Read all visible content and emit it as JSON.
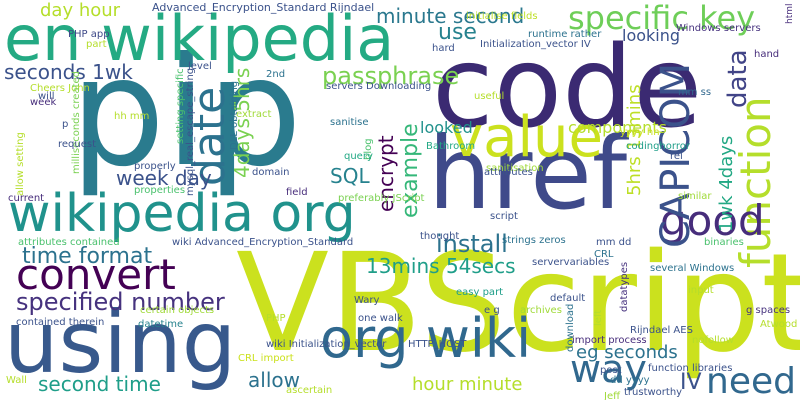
{
  "colors": {
    "background": "#ffffff",
    "palette": [
      "#440154",
      "#46327e",
      "#365c8d",
      "#277f8e",
      "#1fa187",
      "#4ac16d",
      "#a0da39",
      "#d8e219",
      "#fde725"
    ]
  },
  "words": [
    {
      "text": "pip",
      "color": "#2a7b8e"
    },
    {
      "text": "code",
      "color": "#3b2a72"
    },
    {
      "text": "href",
      "color": "#3f4a8a"
    },
    {
      "text": "VBScript",
      "color": "#cbe11e"
    },
    {
      "text": "using",
      "color": "#38598c"
    },
    {
      "text": "en wikipedia",
      "color": "#24aa83"
    },
    {
      "text": "wikipedia org",
      "color": "#20928c"
    },
    {
      "text": "org wiki",
      "color": "#30688e"
    },
    {
      "text": "value",
      "color": "#cbe11e"
    },
    {
      "text": "convert",
      "color": "#440154"
    },
    {
      "text": "function",
      "color": "#b5de2b"
    },
    {
      "text": "good",
      "color": "#472d7b"
    },
    {
      "text": "specific key",
      "color": "#6ece58"
    },
    {
      "text": "CAPICOM",
      "color": "#3b528b"
    },
    {
      "text": "date",
      "color": "#2c728e"
    },
    {
      "text": "way",
      "color": "#31688e"
    },
    {
      "text": "need",
      "color": "#31688e"
    },
    {
      "text": "install",
      "color": "#2c728e"
    },
    {
      "text": "passphrase",
      "color": "#7ad151"
    },
    {
      "text": "time format",
      "color": "#2c728e"
    },
    {
      "text": "specified number",
      "color": "#46327e"
    },
    {
      "text": "minute second",
      "color": "#2a788e"
    },
    {
      "text": "seconds 1wk",
      "color": "#3b528b"
    },
    {
      "text": "4days 5hrs",
      "color": "#7ad151"
    },
    {
      "text": "data",
      "color": "#414487"
    },
    {
      "text": "use",
      "color": "#26828e"
    },
    {
      "text": "example",
      "color": "#35b779"
    },
    {
      "text": "encrypt",
      "color": "#440154"
    },
    {
      "text": "SQL",
      "color": "#26828e"
    },
    {
      "text": "13mins 54secs",
      "color": "#1f9e89"
    },
    {
      "text": "eg seconds",
      "color": "#2c728e"
    },
    {
      "text": "hour minute",
      "color": "#b5de2b"
    },
    {
      "text": "second time",
      "color": "#1f9e89"
    },
    {
      "text": "allow",
      "color": "#2c728e"
    },
    {
      "text": "week day",
      "color": "#3b528b"
    },
    {
      "text": "day hour",
      "color": "#b5de2b"
    },
    {
      "text": "looked",
      "color": "#21918c"
    },
    {
      "text": "looking",
      "color": "#3b528b"
    },
    {
      "text": "components",
      "color": "#b5de2b"
    },
    {
      "text": "1wk 4days",
      "color": "#22a884"
    },
    {
      "text": "5hrs 13mins",
      "color": "#bddf26"
    },
    {
      "text": "IV",
      "color": "#3b528b"
    },
    {
      "text": "Advanced_Encryption_Standard Rijndael",
      "color": "#3b528b"
    },
    {
      "text": "initialise fields",
      "color": "#bddf26"
    },
    {
      "text": "Initialization_vector IV",
      "color": "#3b528b"
    },
    {
      "text": "runtime rather",
      "color": "#2c728e"
    },
    {
      "text": "Windows servers",
      "color": "#46327e"
    },
    {
      "text": "PHP app",
      "color": "#3e4989"
    },
    {
      "text": "Cheers John",
      "color": "#b5de2b"
    },
    {
      "text": "will",
      "color": "#3b528b"
    },
    {
      "text": "week",
      "color": "#472d7b"
    },
    {
      "text": "servers Downloading",
      "color": "#3b528b"
    },
    {
      "text": "useful",
      "color": "#b5de2b"
    },
    {
      "text": "mm ss",
      "color": "#31688e"
    },
    {
      "text": "hh mm",
      "color": "#b5de2b"
    },
    {
      "text": "extract",
      "color": "#a0da39"
    },
    {
      "text": "milliseconds created",
      "color": "#7ad151"
    },
    {
      "text": "setting specific",
      "color": "#4ac16d"
    },
    {
      "text": "mysql_real_escape_string",
      "color": "#3b528b"
    },
    {
      "text": "DLL obtaining",
      "color": "#2c728e"
    },
    {
      "text": "sanitise",
      "color": "#2c728e"
    },
    {
      "text": "blog",
      "color": "#4ac16d"
    },
    {
      "text": "Bathroom",
      "color": "#22a884"
    },
    {
      "text": "sanitisation",
      "color": "#a0da39"
    },
    {
      "text": "yyyy hh",
      "color": "#cbe11e"
    },
    {
      "text": "codinghorror",
      "color": "#1f9e89"
    },
    {
      "text": "request",
      "color": "#3b528b"
    },
    {
      "text": "properly",
      "color": "#3b528b"
    },
    {
      "text": "query",
      "color": "#22a884"
    },
    {
      "text": "rel",
      "color": "#3b528b"
    },
    {
      "text": "domain",
      "color": "#3b528b"
    },
    {
      "text": "attributes",
      "color": "#3b528b"
    },
    {
      "text": "properties",
      "color": "#4ac16d"
    },
    {
      "text": "current",
      "color": "#472d7b"
    },
    {
      "text": "field",
      "color": "#472d7b"
    },
    {
      "text": "preferably JScript",
      "color": "#7ad151"
    },
    {
      "text": "script",
      "color": "#3b528b"
    },
    {
      "text": "similar",
      "color": "#a0da39"
    },
    {
      "text": "attributes contained",
      "color": "#4ac16d"
    },
    {
      "text": "wiki Advanced_Encryption_Standard",
      "color": "#3b528b"
    },
    {
      "text": "thought",
      "color": "#3b528b"
    },
    {
      "text": "strings zeros",
      "color": "#2c728e"
    },
    {
      "text": "mm dd",
      "color": "#3b528b"
    },
    {
      "text": "binaries",
      "color": "#4ac16d"
    },
    {
      "text": "CRL",
      "color": "#2c728e"
    },
    {
      "text": "servervariables",
      "color": "#3b528b"
    },
    {
      "text": "several Windows",
      "color": "#2c728e"
    },
    {
      "text": "Wary",
      "color": "#3b528b"
    },
    {
      "text": "e g",
      "color": "#3b528b"
    },
    {
      "text": "easy part",
      "color": "#1f9e89"
    },
    {
      "text": "datatypes",
      "color": "#46327e"
    },
    {
      "text": "default",
      "color": "#3b528b"
    },
    {
      "text": "archives",
      "color": "#a0da39"
    },
    {
      "text": "g spaces",
      "color": "#46327e"
    },
    {
      "text": "Atwood",
      "color": "#b5de2b"
    },
    {
      "text": "contained therein",
      "color": "#3b528b"
    },
    {
      "text": "certain objects",
      "color": "#a0da39"
    },
    {
      "text": "datetime",
      "color": "#26828e"
    },
    {
      "text": "one walk",
      "color": "#3b528b"
    },
    {
      "text": "PHP",
      "color": "#b5de2b"
    },
    {
      "text": "wiki Initialization_vector",
      "color": "#3b528b"
    },
    {
      "text": "HTTP_HOST",
      "color": "#3b528b"
    },
    {
      "text": "import process",
      "color": "#472d7b"
    },
    {
      "text": "Rijndael AES",
      "color": "#3b528b"
    },
    {
      "text": "function libraries",
      "color": "#3b528b"
    },
    {
      "text": "nofollow",
      "color": "#b5de2b"
    },
    {
      "text": "CRL import",
      "color": "#cbe11e"
    },
    {
      "text": "ascertain",
      "color": "#b5de2b"
    },
    {
      "text": "download",
      "color": "#2c728e"
    },
    {
      "text": "post",
      "color": "#3b528b"
    },
    {
      "text": "dd yyyy",
      "color": "#2c728e"
    },
    {
      "text": "trustworthy",
      "color": "#3b528b"
    },
    {
      "text": "Wall",
      "color": "#b5de2b"
    },
    {
      "text": "hand",
      "color": "#472d7b"
    },
    {
      "text": "html",
      "color": "#472d7b"
    },
    {
      "text": "level",
      "color": "#3b528b"
    },
    {
      "text": "2nd",
      "color": "#2c728e"
    },
    {
      "text": "hard",
      "color": "#3b528b"
    },
    {
      "text": "part",
      "color": "#b5de2b"
    },
    {
      "text": "input",
      "color": "#b5de2b"
    },
    {
      "text": "left",
      "color": "#b5de2b"
    },
    {
      "text": "p",
      "color": "#3b528b"
    },
    {
      "text": "allow setting",
      "color": "#b5de2b"
    },
    {
      "text": "Jeff",
      "color": "#a0da39"
    }
  ]
}
